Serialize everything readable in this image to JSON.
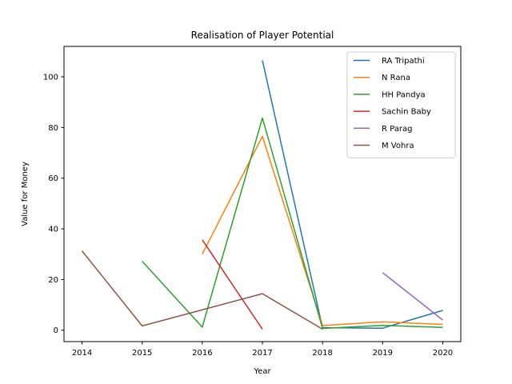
{
  "chart_data": {
    "type": "line",
    "title": "Realisation of Player Potential",
    "xlabel": "Year",
    "ylabel": "Value for Money",
    "xlim": [
      2013.7,
      2020.3
    ],
    "ylim": [
      -4.5,
      112
    ],
    "x_ticks": [
      2014,
      2015,
      2016,
      2017,
      2018,
      2019,
      2020
    ],
    "y_ticks": [
      0,
      20,
      40,
      60,
      80,
      100
    ],
    "grid": false,
    "legend_position": "top-right",
    "series": [
      {
        "name": "RA Tripathi",
        "color": "#1f77b4",
        "points": [
          [
            2017,
            106.5
          ],
          [
            2018,
            1.0
          ],
          [
            2019,
            0.8
          ],
          [
            2020,
            7.8
          ]
        ]
      },
      {
        "name": "N Rana",
        "color": "#ff7f0e",
        "points": [
          [
            2016,
            30.0
          ],
          [
            2017,
            76.5
          ],
          [
            2018,
            1.8
          ],
          [
            2019,
            3.3
          ],
          [
            2020,
            2.3
          ]
        ]
      },
      {
        "name": "HH Pandya",
        "color": "#2ca02c",
        "points": [
          [
            2015,
            27.2
          ],
          [
            2016,
            1.2
          ],
          [
            2017,
            83.7
          ],
          [
            2018,
            0.7
          ],
          [
            2019,
            1.9
          ],
          [
            2020,
            1.1
          ]
        ]
      },
      {
        "name": "Sachin Baby",
        "color": "#d62728",
        "points": [
          [
            2016,
            35.7
          ],
          [
            2017,
            0.4
          ]
        ]
      },
      {
        "name": "R Parag",
        "color": "#9467bd",
        "points": [
          [
            2019,
            22.7
          ],
          [
            2020,
            4.0
          ]
        ]
      },
      {
        "name": "M Vohra",
        "color": "#8c564b",
        "points": [
          [
            2014,
            31.3
          ],
          [
            2015,
            1.7
          ],
          [
            2017,
            14.4
          ],
          [
            2018,
            0.4
          ]
        ]
      }
    ]
  }
}
